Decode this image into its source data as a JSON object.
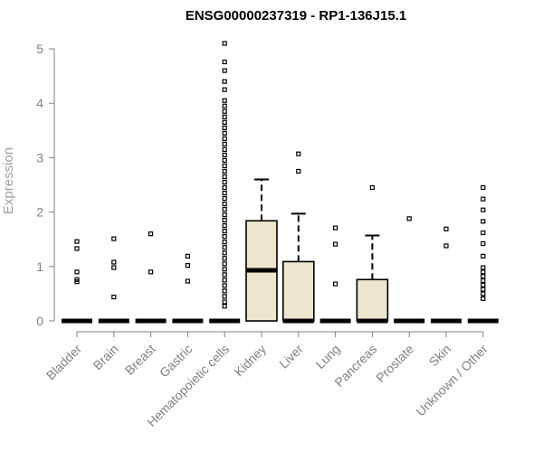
{
  "chart_data": {
    "type": "boxplot",
    "title": "ENSG00000237319 - RP1-136J15.1",
    "ylabel": "Expression",
    "xlabel": "",
    "ylim": [
      0,
      5.15
    ],
    "yticks": [
      0,
      1,
      2,
      3,
      4,
      5
    ],
    "grid": false,
    "fill_color": "#ede6cf",
    "categories": [
      "Bladder",
      "Brain",
      "Breast",
      "Gastric",
      "Hematopoietic cells",
      "Kidney",
      "Liver",
      "Lung",
      "Pancreas",
      "Prostate",
      "Skin",
      "Unknown / Other"
    ],
    "boxes": [
      {
        "q1": 0,
        "median": 0,
        "q3": 0,
        "whisker_low": 0,
        "whisker_high": 0,
        "outliers": [
          0.72,
          0.76,
          0.9,
          1.33,
          1.46
        ]
      },
      {
        "q1": 0,
        "median": 0,
        "q3": 0,
        "whisker_low": 0,
        "whisker_high": 0,
        "outliers": [
          0.44,
          0.98,
          1.08,
          1.51
        ]
      },
      {
        "q1": 0,
        "median": 0,
        "q3": 0,
        "whisker_low": 0,
        "whisker_high": 0,
        "outliers": [
          0.9,
          1.6
        ]
      },
      {
        "q1": 0,
        "median": 0,
        "q3": 0,
        "whisker_low": 0,
        "whisker_high": 0,
        "outliers": [
          0.73,
          1.02,
          1.19
        ]
      },
      {
        "q1": 0,
        "median": 0,
        "q3": 0,
        "whisker_low": 0,
        "whisker_high": 0,
        "outliers": [
          0.27,
          0.35,
          0.45,
          0.55,
          0.65,
          0.75,
          0.85,
          0.95,
          1.05,
          1.15,
          1.25,
          1.35,
          1.45,
          1.55,
          1.65,
          1.75,
          1.85,
          1.95,
          2.05,
          2.15,
          2.25,
          2.35,
          2.45,
          2.55,
          2.65,
          2.75,
          2.85,
          2.95,
          3.05,
          3.15,
          3.25,
          3.35,
          3.45,
          3.55,
          3.65,
          3.75,
          3.85,
          3.95,
          4.05,
          4.25,
          4.4,
          4.6,
          4.76,
          5.1
        ]
      },
      {
        "q1": 0,
        "median": 0.93,
        "q3": 1.84,
        "whisker_low": 0,
        "whisker_high": 2.6,
        "outliers": []
      },
      {
        "q1": 0,
        "median": 0,
        "q3": 1.09,
        "whisker_low": 0,
        "whisker_high": 1.97,
        "outliers": [
          2.75,
          3.07
        ]
      },
      {
        "q1": 0,
        "median": 0,
        "q3": 0,
        "whisker_low": 0,
        "whisker_high": 0,
        "outliers": [
          0.68,
          1.41,
          1.71
        ]
      },
      {
        "q1": 0,
        "median": 0,
        "q3": 0.76,
        "whisker_low": 0,
        "whisker_high": 1.57,
        "outliers": [
          2.45
        ]
      },
      {
        "q1": 0,
        "median": 0,
        "q3": 0,
        "whisker_low": 0,
        "whisker_high": 0,
        "outliers": [
          1.88
        ]
      },
      {
        "q1": 0,
        "median": 0,
        "q3": 0,
        "whisker_low": 0,
        "whisker_high": 0,
        "outliers": [
          1.38,
          1.69
        ]
      },
      {
        "q1": 0,
        "median": 0,
        "q3": 0,
        "whisker_low": 0,
        "whisker_high": 0,
        "outliers": [
          0.41,
          0.5,
          0.58,
          0.66,
          0.74,
          0.82,
          0.9,
          0.98,
          1.19,
          1.42,
          1.62,
          1.83,
          2.04,
          2.24,
          2.45
        ]
      }
    ]
  }
}
